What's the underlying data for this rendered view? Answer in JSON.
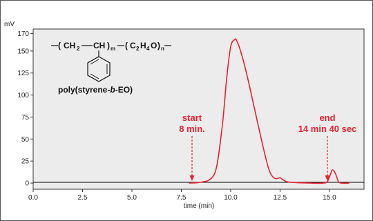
{
  "chart_data": {
    "type": "line",
    "ylabel": "mV",
    "xlabel": "time (min)",
    "xlim": [
      0,
      16.75
    ],
    "ylim": [
      -7,
      175
    ],
    "x_ticks": [
      "0.0",
      "2.5",
      "5.0",
      "7.5",
      "10.0",
      "12.5",
      "15.0"
    ],
    "y_ticks": [
      "0",
      "25",
      "50",
      "75",
      "100",
      "125",
      "150",
      "170"
    ],
    "grid": false,
    "line_color": "#e8202f",
    "baseline_color": "#000000",
    "plot_background": "#ececec",
    "x": [
      7.9,
      8.5,
      9.0,
      9.3,
      9.6,
      9.8,
      10.0,
      10.2,
      10.3,
      10.5,
      10.8,
      11.2,
      11.6,
      11.9,
      12.1,
      12.3,
      12.5,
      12.7,
      13.0,
      14.0,
      14.7,
      14.9,
      15.05,
      15.15,
      15.3,
      15.45,
      15.6,
      16.0
    ],
    "y": [
      0,
      1,
      5,
      20,
      70,
      120,
      155,
      163,
      162,
      150,
      125,
      85,
      45,
      18,
      8,
      5,
      6,
      3,
      1,
      0,
      0,
      2,
      10,
      15,
      11,
      2,
      0,
      0
    ],
    "annotations": [
      {
        "label_line1": "start",
        "label_line2": "8 min.",
        "x": 8.0
      },
      {
        "label_line1": "end",
        "label_line2": "14 min 40 sec",
        "x": 14.67
      }
    ]
  },
  "structure": {
    "ch2": "CH",
    "ch2_sub": "2",
    "ch": "CH",
    "m": "m",
    "c2h4o_c": "C",
    "c2h4o_c_sub": "2",
    "c2h4o_h": "H",
    "c2h4o_h_sub": "4",
    "c2h4o_o": "O",
    "n": "n",
    "caption_prefix": "poly(styrene-",
    "caption_b": "b",
    "caption_suffix": "-EO)"
  }
}
